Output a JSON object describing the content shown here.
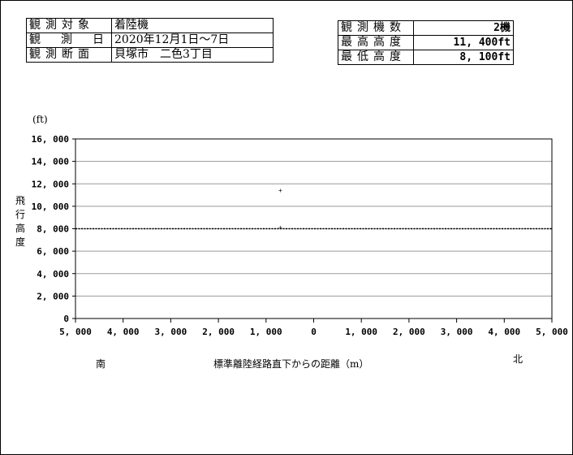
{
  "info_left": [
    {
      "label": "観測対象",
      "value": "着陸機"
    },
    {
      "label": "観測日",
      "value": "2020年12月1日～7日"
    },
    {
      "label": "観測断面",
      "value": "貝塚市　二色3丁目"
    }
  ],
  "info_right": [
    {
      "label": "観測機数",
      "value": "2機"
    },
    {
      "label": "最高高度",
      "value": "11, 400ft"
    },
    {
      "label": "最低高度",
      "value": "8, 100ft"
    }
  ],
  "chart_data": {
    "type": "scatter",
    "unit_label": "(ft)",
    "ylabel": "飛行高度",
    "xlabel": "標準離陸経路直下からの距離（m）",
    "south_label": "南",
    "north_label": "北",
    "ylim": [
      0,
      16000
    ],
    "xlim": [
      -5000,
      5000
    ],
    "y_ticks": [
      0,
      2000,
      4000,
      6000,
      8000,
      10000,
      12000,
      14000,
      16000
    ],
    "y_tick_labels": [
      "0",
      "2, 000",
      "4, 000",
      "6, 000",
      "8, 000",
      "10, 000",
      "12, 000",
      "14, 000",
      "16, 000"
    ],
    "x_ticks": [
      -5000,
      -4000,
      -3000,
      -2000,
      -1000,
      0,
      1000,
      2000,
      3000,
      4000,
      5000
    ],
    "x_tick_labels": [
      "5, 000",
      "4, 000",
      "3, 000",
      "2, 000",
      "1, 000",
      "0",
      "1, 000",
      "2, 000",
      "3, 000",
      "4, 000",
      "5, 000"
    ],
    "points": [
      {
        "x": -700,
        "y": 11400
      },
      {
        "x": -700,
        "y": 8100
      }
    ],
    "reference_line_y": 8000,
    "grid": true
  }
}
